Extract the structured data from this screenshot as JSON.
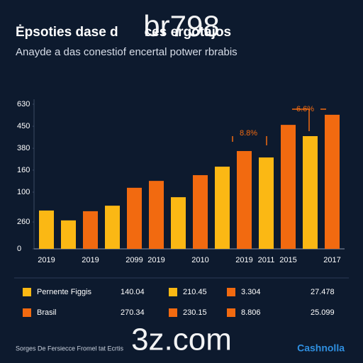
{
  "chart_data": {
    "type": "bar",
    "title": "Ėpsoties dase d       ces ergotajos",
    "subtitle": "Anayde a das conestiof encertal potwer rbrabis",
    "categories": [
      "2019",
      null,
      "2019",
      null,
      "2099",
      "2019",
      null,
      "2010",
      null,
      "2019",
      "2011",
      "2015",
      null,
      "2017"
    ],
    "series": [
      {
        "name": "Pernente Figgis",
        "color": "#fbb814",
        "values": [
          167,
          124,
          null,
          188,
          null,
          null,
          225,
          null,
          358,
          null,
          398,
          null,
          491,
          null
        ]
      },
      {
        "name": "Brasil",
        "color": "#f26a10",
        "values": [
          null,
          null,
          164,
          null,
          266,
          296,
          null,
          321,
          null,
          426,
          null,
          540,
          null,
          584
        ]
      }
    ],
    "ylim": [
      0,
      650
    ],
    "yticks": [
      0,
      {
        "value": 117,
        "label": "260"
      },
      {
        "value": 247,
        "label": "100"
      },
      {
        "value": 343,
        "label": "160"
      },
      {
        "value": 438,
        "label": "380"
      },
      {
        "value": 534,
        "label": "450"
      },
      630
    ],
    "annotations": [
      "8.8%",
      "6.6%"
    ],
    "legend_table": {
      "rows": [
        [
          "Pernente Figgis",
          "140.04",
          "210.45",
          "3.304",
          "27.478"
        ],
        [
          "Brasil",
          "270.34",
          "230.15",
          "8.806",
          "25.099"
        ]
      ]
    },
    "source": "Sorges De Fersiecce Fromel tat Ecrtis",
    "brand": "Cashnolla",
    "watermarks": [
      "br798",
      "3z.com"
    ]
  }
}
